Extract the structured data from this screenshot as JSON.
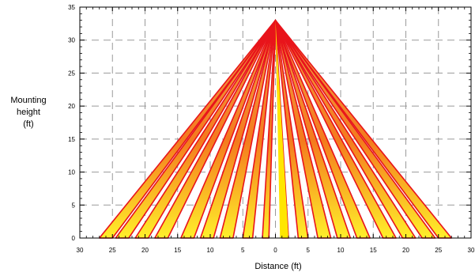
{
  "chart_data": {
    "type": "area",
    "title": "",
    "xlabel": "Distance (ft)",
    "ylabel_lines": [
      "Mounting",
      "height",
      "(ft)"
    ],
    "xlim": [
      -30,
      30
    ],
    "ylim": [
      0,
      35
    ],
    "x_tick_values": [
      -30,
      -25,
      -20,
      -15,
      -10,
      -5,
      0,
      5,
      10,
      15,
      20,
      25,
      30
    ],
    "x_tick_labels": [
      "30",
      "25",
      "20",
      "15",
      "10",
      "5",
      "0",
      "5",
      "10",
      "15",
      "20",
      "25",
      "30"
    ],
    "y_tick_values": [
      0,
      5,
      10,
      15,
      20,
      25,
      30,
      35
    ],
    "y_tick_labels": [
      "0",
      "5",
      "10",
      "15",
      "20",
      "25",
      "30",
      "35"
    ],
    "grid": true,
    "grid_style": "dashed",
    "apex": {
      "x": 0,
      "y": 33
    },
    "beams": [
      {
        "x_near": -27,
        "x_far": -25
      },
      {
        "x_near": -24.5,
        "x_far": -22.5
      },
      {
        "x_near": -21.5,
        "x_far": -19.5
      },
      {
        "x_near": -18.5,
        "x_far": -16.5
      },
      {
        "x_near": -14.5,
        "x_far": -12.5
      },
      {
        "x_near": -11.5,
        "x_far": -9.5
      },
      {
        "x_near": -8.5,
        "x_far": -6.5
      },
      {
        "x_near": -5,
        "x_far": -3.5
      },
      {
        "x_near": -2,
        "x_far": -1
      },
      {
        "x_near": 1,
        "x_far": 2
      },
      {
        "x_near": 3.5,
        "x_far": 5
      },
      {
        "x_near": 6.5,
        "x_far": 8.5
      },
      {
        "x_near": 9.5,
        "x_far": 11.5
      },
      {
        "x_near": 12.5,
        "x_far": 14.5
      },
      {
        "x_near": 16.5,
        "x_far": 18.5
      },
      {
        "x_near": 19.5,
        "x_far": 21.5
      },
      {
        "x_near": 22.5,
        "x_far": 24.5
      },
      {
        "x_near": 25,
        "x_far": 27
      }
    ],
    "center_beam": {
      "x_from": 0.7,
      "x_to": 2.0
    },
    "colors": {
      "outline": "#e8141b",
      "fill_top": "#f2a24a",
      "fill_mid": "#f47a1e",
      "fill_bottom": "#ffef2a",
      "center_fill": "#ffe600",
      "fan_top": "#f0c07a",
      "grid": "#9a9a9a",
      "axis": "#000000"
    }
  }
}
